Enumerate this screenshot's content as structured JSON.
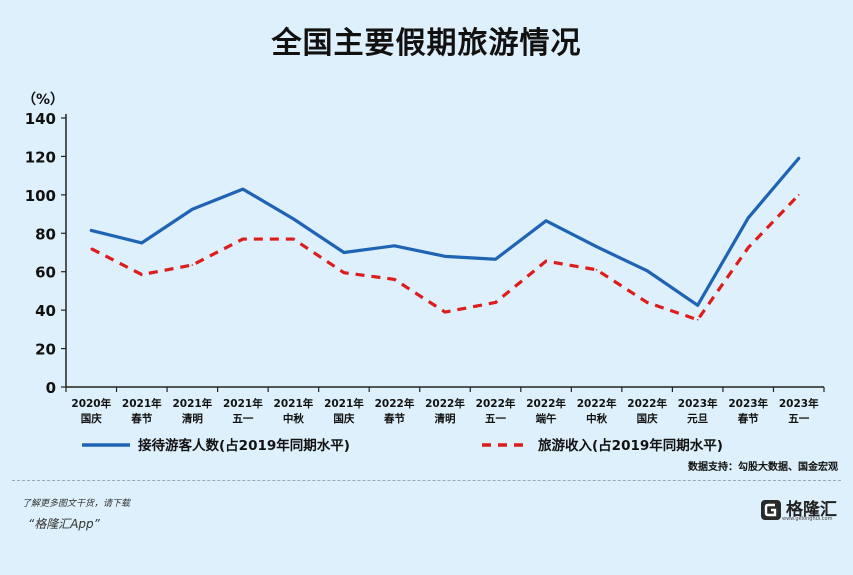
{
  "title": "全国主要假期旅游情况",
  "chart_data": {
    "type": "line",
    "ylabel": "（%）",
    "ylim": [
      0,
      140
    ],
    "yticks": [
      0,
      20,
      40,
      60,
      80,
      100,
      120,
      140
    ],
    "categories": [
      [
        "2020年",
        "国庆"
      ],
      [
        "2021年",
        "春节"
      ],
      [
        "2021年",
        "清明"
      ],
      [
        "2021年",
        "五一"
      ],
      [
        "2021年",
        "中秋"
      ],
      [
        "2021年",
        "国庆"
      ],
      [
        "2022年",
        "春节"
      ],
      [
        "2022年",
        "清明"
      ],
      [
        "2022年",
        "五一"
      ],
      [
        "2022年",
        "端午"
      ],
      [
        "2022年",
        "中秋"
      ],
      [
        "2022年",
        "国庆"
      ],
      [
        "2023年",
        "元旦"
      ],
      [
        "2023年",
        "春节"
      ],
      [
        "2023年",
        "五一"
      ]
    ],
    "series": [
      {
        "name": "接待游客人数(占2019年同期水平)",
        "color": "#1e63b4",
        "style": "solid",
        "values": [
          81.5,
          75,
          92.5,
          103,
          87.5,
          70,
          73.5,
          68,
          66.5,
          86.5,
          73,
          60.5,
          42.5,
          88,
          119
        ]
      },
      {
        "name": "旅游收入(占2019年同期水平)",
        "color": "#dd1c1c",
        "style": "dashed",
        "values": [
          72,
          58.5,
          63.5,
          77,
          77,
          59.5,
          56,
          39,
          44,
          65.5,
          61,
          44,
          35,
          72.5,
          100
        ]
      }
    ],
    "grid": false,
    "legend": "bottom"
  },
  "source": "数据支持：勾股大数据、国金宏观",
  "footer": {
    "promo_line": "了解更多图文干货，请下载",
    "promo_app": "“格隆汇App”",
    "brand_name": "格隆汇",
    "brand_site": "www.gelonghui.com"
  }
}
